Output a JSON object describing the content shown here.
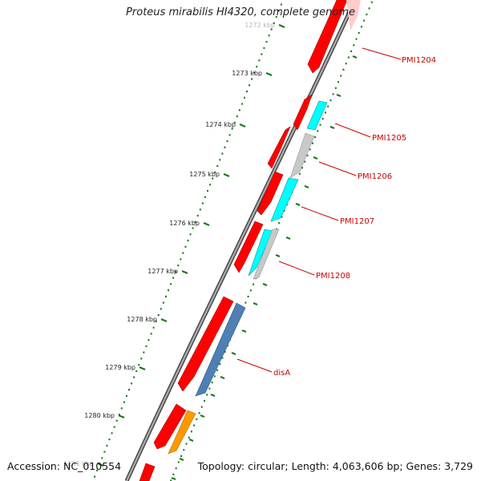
{
  "title": "Proteus mirabilis HI4320, complete genome",
  "footer": {
    "accession": "Accession: NC_010554",
    "topology": "Topology: circular; Length: 4,063,606 bp; Genes: 3,729"
  },
  "colors": {
    "backbone": "#707070",
    "forward_gene": "#ff0000",
    "cyan_gene": "#00ffff",
    "grey_gene": "#c8c8c8",
    "steelblue_gene": "#4f7fb3",
    "orange_gene": "#ff9900",
    "ruler": "#1a7a1a",
    "label": "#cc0000"
  },
  "ruler_labels": [
    "1272 kbp",
    "1273 kbp",
    "1274 kbp",
    "1275 kbp",
    "1276 kbp",
    "1277 kbp",
    "1278 kbp",
    "1279 kbp",
    "1280 kbp",
    "1281 kbp"
  ],
  "gene_labels": [
    "PMI1204",
    "PMI1205",
    "PMI1206",
    "PMI1207",
    "PMI1208",
    "disA"
  ]
}
